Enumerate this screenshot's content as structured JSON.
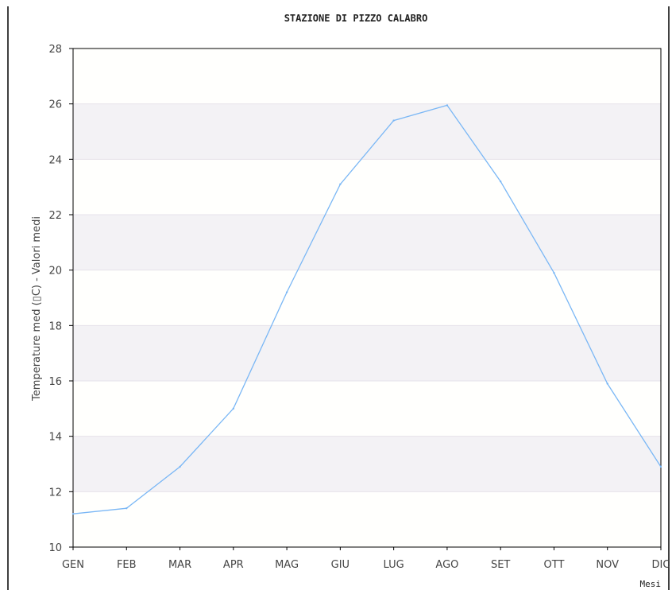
{
  "chart_data": {
    "type": "line",
    "title": "STAZIONE DI PIZZO CALABRO",
    "xlabel": "Mesi",
    "ylabel": "Temperature med (▯C) - Valori medi",
    "categories": [
      "GEN",
      "FEB",
      "MAR",
      "APR",
      "MAG",
      "GIU",
      "LUG",
      "AGO",
      "SET",
      "OTT",
      "NOV",
      "DIC"
    ],
    "series": [
      {
        "values": [
          11.2,
          11.4,
          12.9,
          15.0,
          19.2,
          23.1,
          25.4,
          25.95,
          23.2,
          19.9,
          15.9,
          12.9
        ]
      }
    ],
    "ylim": [
      10,
      28
    ],
    "yticks": [
      10,
      12,
      14,
      16,
      18,
      20,
      22,
      24,
      26,
      28
    ],
    "line_color": "#7ab7f5",
    "band_color": "#f3f2f5",
    "grid": true
  }
}
